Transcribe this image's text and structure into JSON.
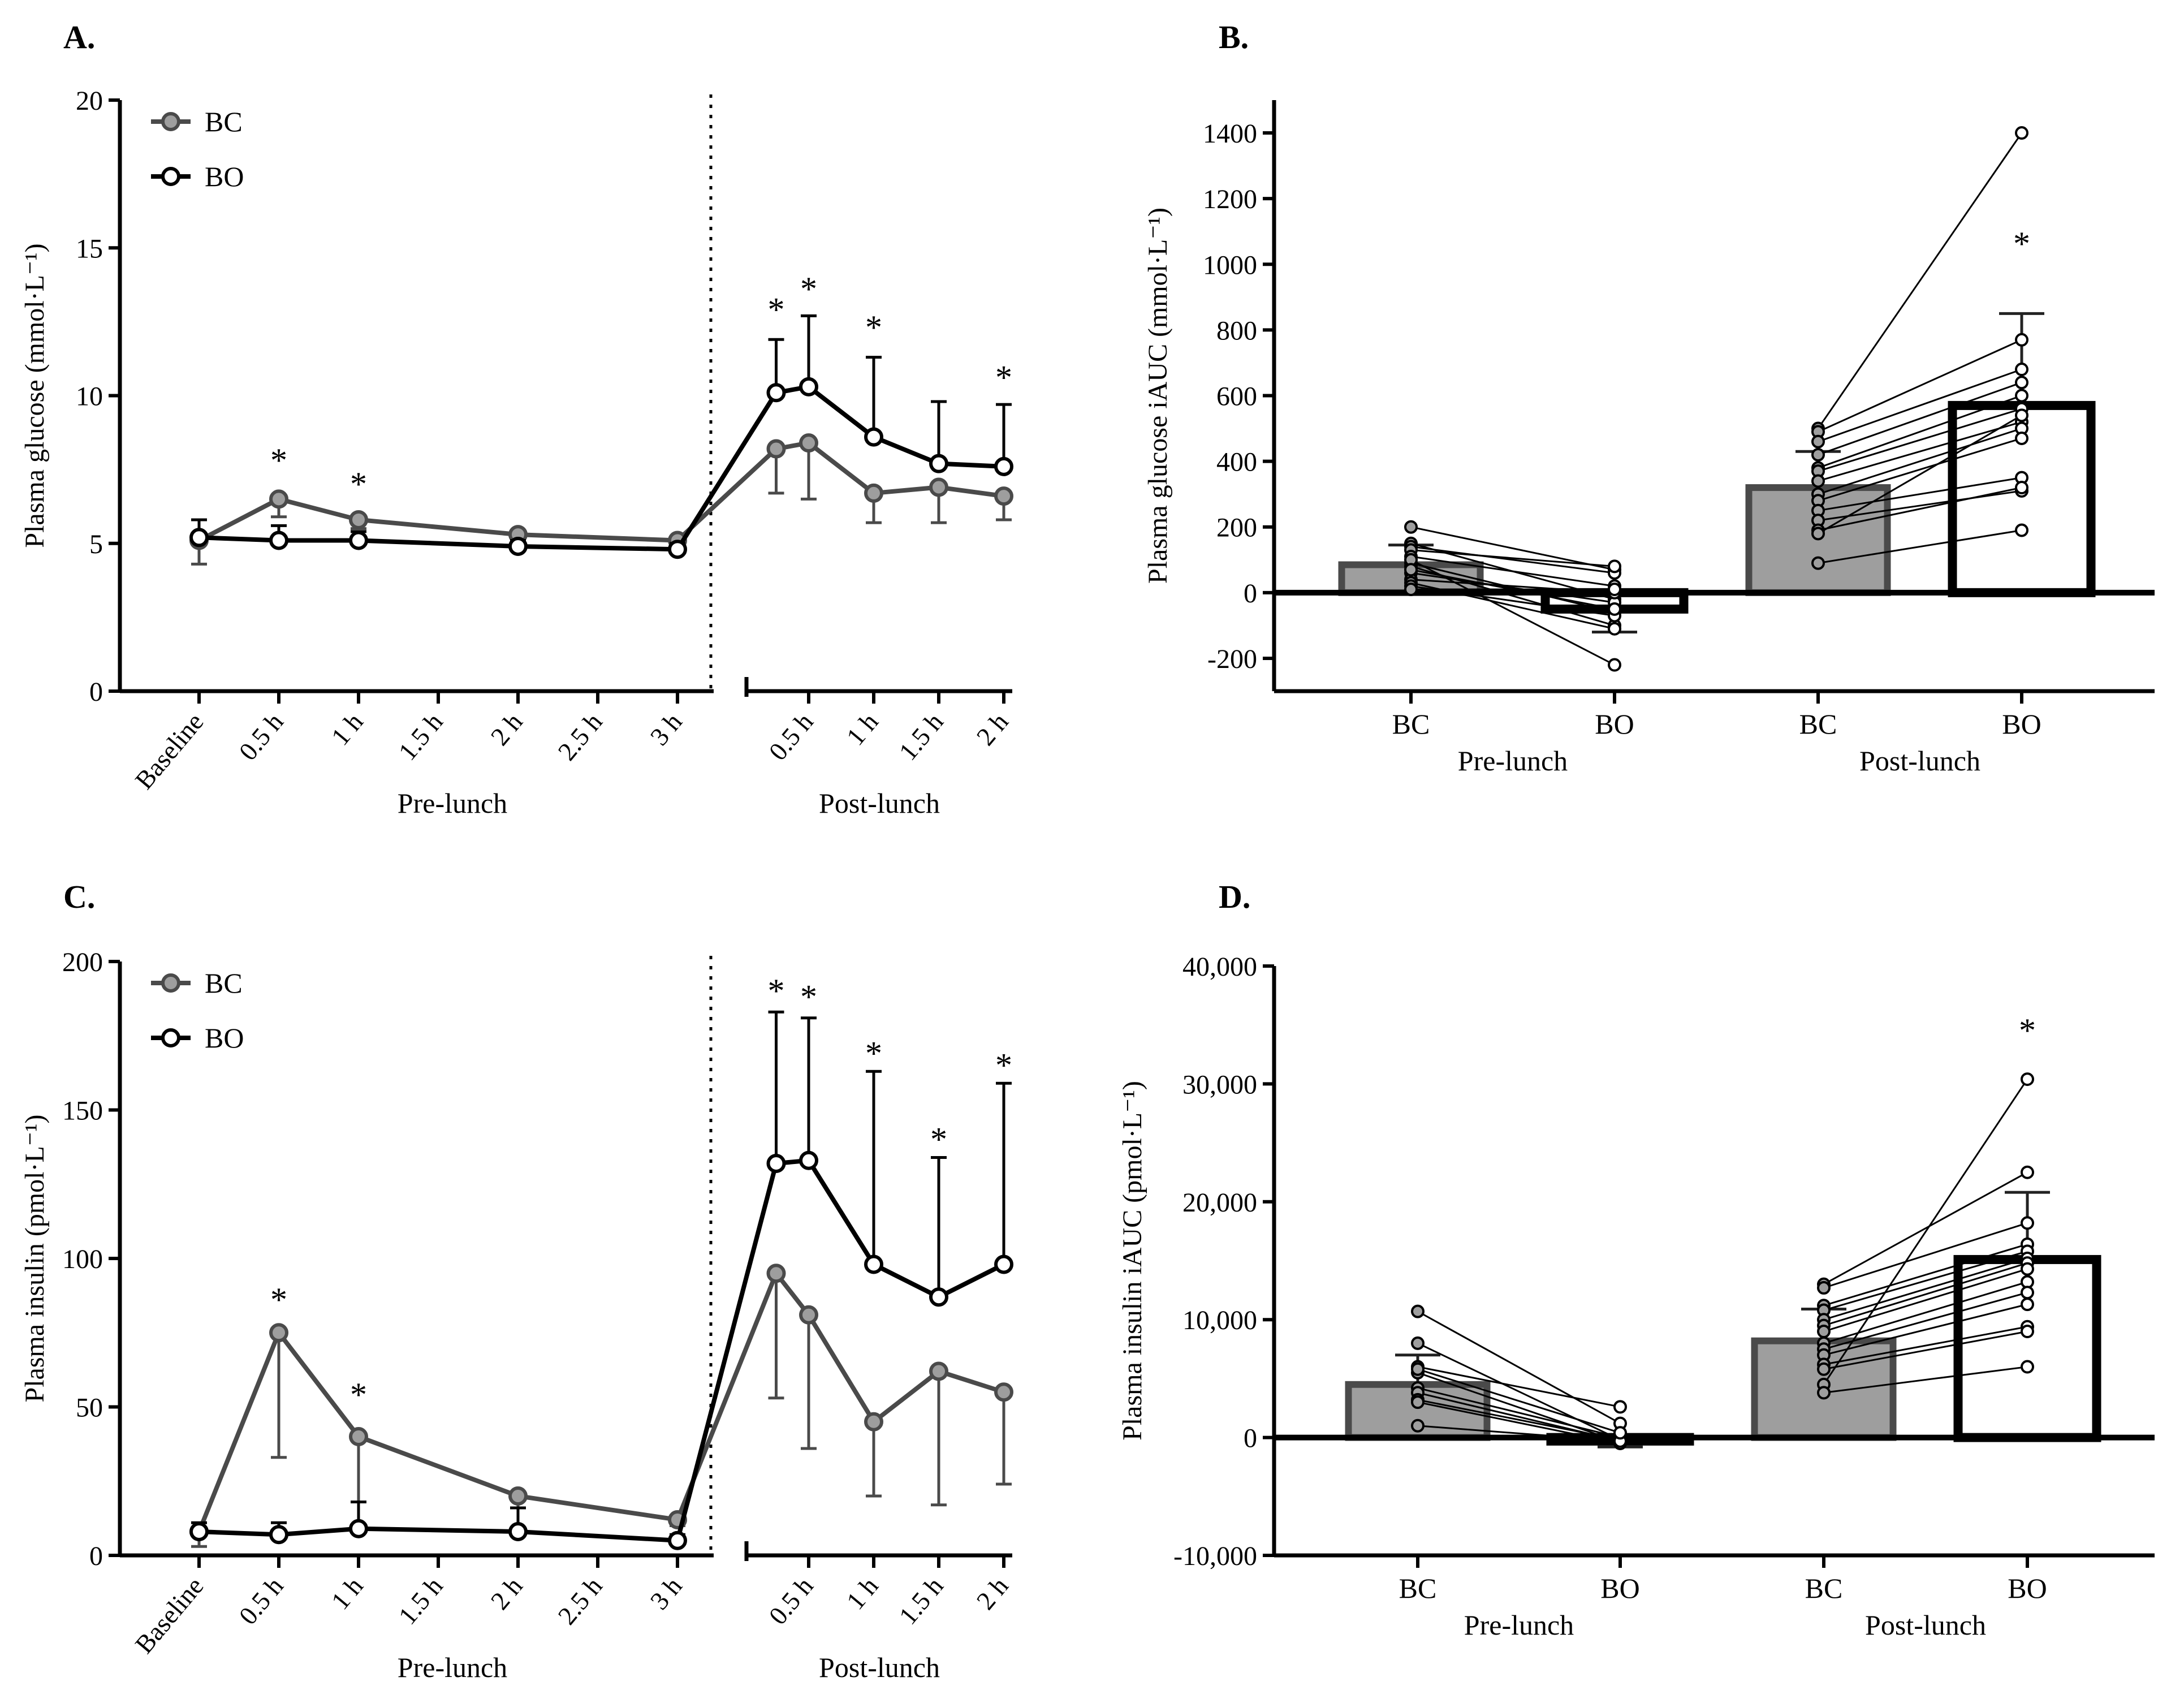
{
  "panels": {
    "A": {
      "letter": "A."
    },
    "B": {
      "letter": "B."
    },
    "C": {
      "letter": "C."
    },
    "D": {
      "letter": "D."
    }
  },
  "colors": {
    "bc_fill": "#9e9e9e",
    "bc_line": "#4a4a4a",
    "bo_fill": "#ffffff",
    "bo_line": "#000000",
    "axis": "#000000"
  },
  "chart_data": [
    {
      "id": "A",
      "type": "line",
      "ylabel": "Plasma glucose (mmol·L⁻¹)",
      "ylim": [
        0,
        20
      ],
      "yticks": [
        0,
        5,
        10,
        15,
        20
      ],
      "ytick_labels": [
        "0",
        "5",
        "10",
        "15",
        "20"
      ],
      "segments": [
        {
          "name": "Pre-lunch",
          "x": [
            0,
            0.5,
            1,
            1.5,
            2,
            2.5,
            3
          ],
          "tick_labels": [
            "Baseline",
            "0.5 h",
            "1 h",
            "1.5 h",
            "2 h",
            "2.5 h",
            "3 h"
          ]
        },
        {
          "name": "Post-lunch",
          "x": [
            0.5,
            1,
            1.5,
            2
          ],
          "tick_labels": [
            "0.5 h",
            "1 h",
            "1.5 h",
            "2 h"
          ]
        }
      ],
      "legend": [
        "BC",
        "BO"
      ],
      "series": [
        {
          "name": "BC",
          "pre": {
            "x": [
              0,
              0.5,
              1,
              2,
              3
            ],
            "y": [
              5.1,
              6.5,
              5.8,
              5.3,
              5.1
            ],
            "err": [
              0.8,
              0.6,
              0.3,
              0.2,
              0.2
            ]
          },
          "post": {
            "x": [
              0.25,
              0.5,
              1,
              1.5,
              2
            ],
            "y": [
              8.2,
              8.4,
              6.7,
              6.9,
              6.6
            ],
            "err": [
              1.5,
              1.9,
              1.0,
              1.2,
              0.8
            ]
          }
        },
        {
          "name": "BO",
          "pre": {
            "x": [
              0,
              0.5,
              1,
              2,
              3
            ],
            "y": [
              5.2,
              5.1,
              5.1,
              4.9,
              4.8
            ],
            "err": [
              0.6,
              0.5,
              0.3,
              0.2,
              0.2
            ]
          },
          "post": {
            "x": [
              0.25,
              0.5,
              1,
              1.5,
              2
            ],
            "y": [
              10.1,
              10.3,
              8.6,
              7.7,
              7.6
            ],
            "err": [
              1.8,
              2.4,
              2.7,
              2.1,
              2.1
            ]
          }
        }
      ],
      "stars": {
        "pre": [
          {
            "x": 0.5,
            "y": 8.0
          },
          {
            "x": 1,
            "y": 7.2
          }
        ],
        "post": [
          {
            "x": 0.25,
            "y": 13.1
          },
          {
            "x": 0.5,
            "y": 13.8
          },
          {
            "x": 1,
            "y": 12.5
          },
          {
            "x": 2,
            "y": 10.8
          }
        ]
      },
      "star_label": "*"
    },
    {
      "id": "B",
      "type": "bar",
      "ylabel": "Plasma glucose iAUC (mmol·L⁻¹)",
      "ylim": [
        -300,
        1500
      ],
      "yticks": [
        -200,
        0,
        200,
        400,
        600,
        800,
        1000,
        1200,
        1400
      ],
      "ytick_labels": [
        "-200",
        "0",
        "200",
        "400",
        "600",
        "800",
        "1000",
        "1200",
        "1400"
      ],
      "categories": [
        "BC",
        "BO",
        "BC",
        "BO"
      ],
      "groups": [
        "Pre-lunch",
        "Post-lunch"
      ],
      "values": [
        85,
        -50,
        320,
        570
      ],
      "errors": [
        60,
        70,
        110,
        280
      ],
      "individual": [
        [
          [
            200,
            70
          ],
          [
            150,
            -20
          ],
          [
            140,
            60
          ],
          [
            130,
            80
          ],
          [
            110,
            20
          ],
          [
            90,
            -60
          ],
          [
            80,
            -100
          ],
          [
            60,
            -30
          ],
          [
            40,
            0
          ],
          [
            30,
            -110
          ],
          [
            20,
            -70
          ],
          [
            10,
            10
          ],
          [
            100,
            -220
          ],
          [
            70,
            -50
          ]
        ],
        [
          [
            500,
            1400
          ],
          [
            490,
            770
          ],
          [
            460,
            680
          ],
          [
            420,
            640
          ],
          [
            380,
            600
          ],
          [
            370,
            560
          ],
          [
            340,
            520
          ],
          [
            300,
            500
          ],
          [
            280,
            470
          ],
          [
            250,
            350
          ],
          [
            220,
            310
          ],
          [
            190,
            320
          ],
          [
            180,
            540
          ],
          [
            90,
            190
          ]
        ]
      ],
      "stars": [
        {
          "bar": 3,
          "y": 1080
        }
      ],
      "star_label": "*"
    },
    {
      "id": "C",
      "type": "line",
      "ylabel": "Plasma insulin (pmol·L⁻¹)",
      "ylim": [
        0,
        200
      ],
      "yticks": [
        0,
        50,
        100,
        150,
        200
      ],
      "ytick_labels": [
        "0",
        "50",
        "100",
        "150",
        "200"
      ],
      "segments": [
        {
          "name": "Pre-lunch",
          "x": [
            0,
            0.5,
            1,
            1.5,
            2,
            2.5,
            3
          ],
          "tick_labels": [
            "Baseline",
            "0.5 h",
            "1 h",
            "1.5 h",
            "2 h",
            "2.5 h",
            "3 h"
          ]
        },
        {
          "name": "Post-lunch",
          "x": [
            0.5,
            1,
            1.5,
            2
          ],
          "tick_labels": [
            "0.5 h",
            "1 h",
            "1.5 h",
            "2 h"
          ]
        }
      ],
      "legend": [
        "BC",
        "BO"
      ],
      "series": [
        {
          "name": "BC",
          "pre": {
            "x": [
              0,
              0.5,
              1,
              2,
              3
            ],
            "y": [
              8,
              75,
              40,
              20,
              12
            ],
            "err": [
              5,
              42,
              22,
              4,
              2
            ]
          },
          "post": {
            "x": [
              0.25,
              0.5,
              1,
              1.5,
              2
            ],
            "y": [
              95,
              81,
              45,
              62,
              55
            ],
            "err": [
              42,
              45,
              25,
              45,
              31
            ]
          }
        },
        {
          "name": "BO",
          "pre": {
            "x": [
              0,
              0.5,
              1,
              2,
              3
            ],
            "y": [
              8,
              7,
              9,
              8,
              5
            ],
            "err": [
              3,
              4,
              9,
              8,
              2
            ]
          },
          "post": {
            "x": [
              0.25,
              0.5,
              1,
              1.5,
              2
            ],
            "y": [
              132,
              133,
              98,
              87,
              98
            ],
            "err": [
              51,
              48,
              65,
              47,
              61
            ]
          }
        }
      ],
      "stars": {
        "pre": [
          {
            "x": 0.5,
            "y": 88
          },
          {
            "x": 1,
            "y": 56
          }
        ],
        "post": [
          {
            "x": 0.25,
            "y": 192
          },
          {
            "x": 0.5,
            "y": 190
          },
          {
            "x": 1,
            "y": 171
          },
          {
            "x": 1.5,
            "y": 142
          },
          {
            "x": 2,
            "y": 167
          }
        ]
      },
      "star_label": "*"
    },
    {
      "id": "D",
      "type": "bar",
      "ylabel": "Plasma insulin iAUC (pmol·L⁻¹)",
      "ylim": [
        -10000,
        40000
      ],
      "yticks": [
        -10000,
        0,
        10000,
        20000,
        30000,
        40000
      ],
      "ytick_labels": [
        "-10,000",
        "0",
        "10,000",
        "20,000",
        "30,000",
        "40,000"
      ],
      "categories": [
        "BC",
        "BO",
        "BC",
        "BO"
      ],
      "groups": [
        "Pre-lunch",
        "Post-lunch"
      ],
      "values": [
        4500,
        -300,
        8200,
        15100
      ],
      "errors": [
        2500,
        500,
        2700,
        5700
      ],
      "individual": [
        [
          [
            10700,
            1200
          ],
          [
            8000,
            -200
          ],
          [
            6000,
            2600
          ],
          [
            5500,
            -400
          ],
          [
            4200,
            0
          ],
          [
            3800,
            -300
          ],
          [
            3200,
            -200
          ],
          [
            3000,
            -500
          ],
          [
            1000,
            -300
          ],
          [
            5800,
            400
          ]
        ],
        [
          [
            13000,
            22500
          ],
          [
            12700,
            18200
          ],
          [
            11200,
            16400
          ],
          [
            10800,
            15800
          ],
          [
            10000,
            15200
          ],
          [
            9500,
            14800
          ],
          [
            9000,
            14300
          ],
          [
            8000,
            13200
          ],
          [
            7500,
            12300
          ],
          [
            7000,
            11300
          ],
          [
            6200,
            9400
          ],
          [
            5800,
            9000
          ],
          [
            4500,
            30400
          ],
          [
            3800,
            6000
          ]
        ]
      ],
      "stars": [
        {
          "bar": 3,
          "y": 35000
        }
      ],
      "star_label": "*"
    }
  ]
}
